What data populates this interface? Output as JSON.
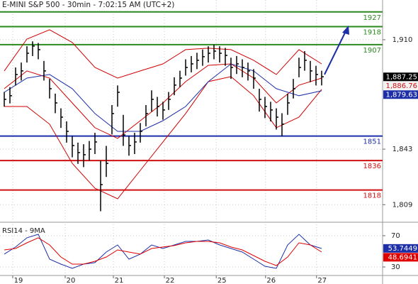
{
  "chart_data": [
    {
      "type": "ohlc",
      "title": "E-MINI S&P 500 - 30min - 7:02:15 AM (UTC+2)",
      "color": "#000000",
      "grid": true,
      "x": [
        0,
        1,
        2,
        3,
        4,
        5,
        6,
        7,
        8,
        9,
        10,
        11,
        12,
        13,
        14,
        15,
        16,
        17,
        18,
        19,
        20,
        21,
        22,
        23,
        24,
        25,
        26,
        27,
        28,
        29,
        30,
        31,
        32,
        33,
        34,
        35,
        36,
        37,
        38,
        39,
        40,
        41,
        42,
        43,
        44,
        45,
        46,
        47,
        48,
        49,
        50,
        51,
        52,
        53,
        54,
        55,
        56
      ],
      "high": [
        1878,
        1881,
        1893,
        1896,
        1906,
        1909,
        1908,
        1897,
        1886,
        1877,
        1868,
        1860,
        1851,
        1847,
        1846,
        1848,
        1853,
        1836,
        1845,
        1870,
        1882,
        1864,
        1851,
        1853,
        1859,
        1870,
        1879,
        1875,
        1872,
        1878,
        1887,
        1891,
        1898,
        1900,
        1902,
        1904,
        1906,
        1907,
        1906,
        1905,
        1899,
        1900,
        1898,
        1896,
        1892,
        1880,
        1875,
        1872,
        1868,
        1865,
        1877,
        1886,
        1899,
        1903,
        1897,
        1894,
        1891
      ],
      "low": [
        1869,
        1871,
        1882,
        1885,
        1896,
        1900,
        1898,
        1885,
        1874,
        1865,
        1856,
        1847,
        1838,
        1834,
        1832,
        1836,
        1840,
        1805,
        1826,
        1852,
        1869,
        1845,
        1839,
        1840,
        1847,
        1857,
        1866,
        1863,
        1861,
        1867,
        1876,
        1881,
        1888,
        1890,
        1892,
        1894,
        1896,
        1898,
        1896,
        1894,
        1886,
        1889,
        1887,
        1885,
        1880,
        1866,
        1862,
        1860,
        1855,
        1851,
        1864,
        1874,
        1887,
        1891,
        1884,
        1882,
        1882
      ],
      "close": [
        1873.5,
        1875.7,
        1888.7,
        1890.9,
        1901.7,
        1906.1,
        1903.9,
        1890.9,
        1880.0,
        1871.3,
        1862.6,
        1853.9,
        1845.2,
        1840.9,
        1839.6,
        1843.0,
        1847.4,
        1821.3,
        1834.3,
        1864.8,
        1877.8,
        1851.7,
        1845.2,
        1847.4,
        1853.9,
        1864.8,
        1873.5,
        1869.1,
        1867.0,
        1873.5,
        1882.2,
        1886.5,
        1893.0,
        1895.2,
        1897.4,
        1899.6,
        1901.7,
        1903.0,
        1901.7,
        1900.4,
        1893.0,
        1895.2,
        1893.0,
        1890.9,
        1886.5,
        1873.5,
        1869.1,
        1867.0,
        1862.6,
        1858.3,
        1871.3,
        1880.0,
        1893.0,
        1897.4,
        1890.9,
        1888.7,
        1887.3
      ],
      "overlays": [
        {
          "color": "#d00000",
          "x": [
            0,
            4,
            8,
            12,
            16,
            20,
            24,
            28,
            32,
            36,
            40,
            44,
            48,
            52,
            56
          ],
          "values": [
            1890.9,
            1910.4,
            1916.1,
            1908.3,
            1893.0,
            1886.5,
            1890.9,
            1895.2,
            1903.9,
            1904.8,
            1903.9,
            1897.4,
            1888.7,
            1903.9,
            1895.2
          ]
        },
        {
          "color": "#d00000",
          "x": [
            0,
            4,
            8,
            12,
            16,
            20,
            24,
            28,
            32,
            36,
            40,
            44,
            48,
            52,
            56
          ],
          "values": [
            1880.0,
            1890.9,
            1886.5,
            1871.3,
            1856.1,
            1849.6,
            1860.4,
            1871.3,
            1884.3,
            1894.3,
            1895.2,
            1886.5,
            1871.3,
            1882.2,
            1886.5
          ]
        },
        {
          "color": "#d00000",
          "x": [
            0,
            4,
            8,
            12,
            16,
            20,
            24,
            28,
            32,
            36,
            40,
            44,
            48,
            52,
            56
          ],
          "values": [
            1869.1,
            1869.1,
            1858.3,
            1834.3,
            1819.1,
            1812.6,
            1830.0,
            1847.4,
            1864.8,
            1884.3,
            1887.4,
            1875.7,
            1856.1,
            1862.6,
            1879.6
          ]
        },
        {
          "color": "#1c2fa8",
          "x": [
            0,
            4,
            8,
            12,
            16,
            20,
            24,
            28,
            32,
            36,
            40,
            44,
            48,
            52,
            56
          ],
          "values": [
            1877.8,
            1886.5,
            1888.7,
            1880.0,
            1864.8,
            1853.9,
            1853.9,
            1860.4,
            1869.1,
            1884.3,
            1895.2,
            1890.9,
            1880.0,
            1875.7,
            1878.7
          ]
        }
      ],
      "levels": [
        {
          "value": 1927,
          "color": "#2a8a1e"
        },
        {
          "value": 1918,
          "color": "#2a8a1e"
        },
        {
          "value": 1907,
          "color": "#2a8a1e"
        },
        {
          "value": 1851,
          "color": "#1c2fa8"
        },
        {
          "value": 1836,
          "color": "#d01010"
        },
        {
          "value": 1818,
          "color": "#d01010"
        }
      ],
      "price_labels": [
        {
          "value": 1887.25,
          "label": "1,887.25",
          "color": "#000000",
          "text_color": "#ffffff"
        },
        {
          "value": 1886.76,
          "label": "1,886.76",
          "color": "#f2f2f2",
          "text_color": "#d01010"
        },
        {
          "value": 1879.63,
          "label": "1,879.63",
          "color": "#1c2fa8",
          "text_color": "#ffffff"
        }
      ],
      "xlim": [
        -0.75,
        66.75
      ],
      "ylim": [
        1798.7,
        1934.3
      ],
      "yticks": [
        {
          "value": 1910,
          "label": "1,910"
        },
        {
          "value": 1843,
          "label": "1,843"
        },
        {
          "value": 1809,
          "label": "1,809"
        }
      ],
      "xticks": [
        {
          "value": 1.5,
          "label": "19"
        },
        {
          "value": 10.75,
          "label": "20"
        },
        {
          "value": 19.25,
          "label": "21"
        },
        {
          "value": 28.25,
          "label": "22"
        },
        {
          "value": 37.4,
          "label": "25"
        },
        {
          "value": 46.1,
          "label": "26"
        },
        {
          "value": 55.1,
          "label": "27"
        }
      ]
    },
    {
      "type": "line",
      "title": "RSI14 - 9MA",
      "grid": true,
      "x": [
        0,
        2,
        4,
        6,
        8,
        10,
        12,
        14,
        16,
        18,
        20,
        22,
        24,
        26,
        28,
        30,
        32,
        34,
        36,
        38,
        40,
        42,
        44,
        46,
        48,
        50,
        52,
        54,
        56
      ],
      "series": [
        {
          "color": "#1c2fa8",
          "values": [
            46.4,
            55.5,
            67.3,
            71.8,
            40.0,
            33.6,
            28.2,
            33.6,
            35.5,
            49.1,
            58.2,
            40.0,
            46.4,
            58.2,
            53.6,
            58.2,
            62.7,
            62.7,
            64.5,
            58.2,
            53.6,
            49.1,
            40.0,
            30.9,
            28.2,
            58.2,
            71.8,
            58.2,
            53.6
          ]
        },
        {
          "color": "#e00000",
          "values": [
            51.8,
            53.6,
            60.9,
            67.3,
            58.2,
            42.7,
            33.6,
            33.6,
            37.3,
            42.7,
            51.8,
            49.1,
            46.4,
            53.6,
            55.5,
            57.3,
            60.9,
            62.7,
            62.7,
            60.9,
            55.5,
            51.8,
            44.5,
            37.3,
            31.8,
            42.7,
            60.9,
            58.2,
            49.1
          ]
        }
      ],
      "last_labels": [
        {
          "value": 53.7449,
          "label": "53.7449",
          "color": "#1c2fa8",
          "text_color": "#ffffff"
        },
        {
          "value": 48.6941,
          "label": "48.6941",
          "color": "#e00000",
          "text_color": "#ffffff"
        }
      ],
      "xlim": [
        -0.75,
        66.75
      ],
      "ylim": [
        20,
        84.5
      ],
      "yticks": [
        70,
        30
      ]
    }
  ]
}
